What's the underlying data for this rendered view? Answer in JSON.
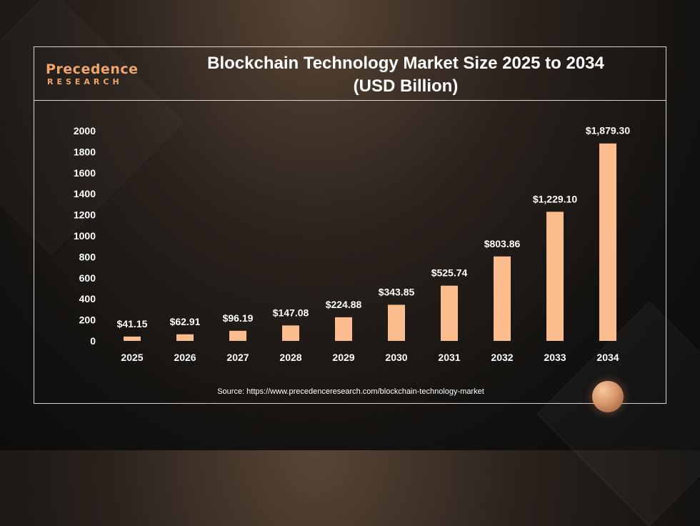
{
  "logo": {
    "main": "Precedence",
    "sub": "RESEARCH"
  },
  "title": {
    "line1": "Blockchain Technology Market Size 2025 to 2034",
    "line2": "(USD Billion)"
  },
  "source": "Source: https://www.precedenceresearch.com/blockchain-technology-market",
  "colors": {
    "bar": "#fbbd8d",
    "text": "#ffffff",
    "accent": "#f0a56c"
  },
  "chart_data": {
    "type": "bar",
    "title": "Blockchain Technology Market Size 2025 to 2034 (USD Billion)",
    "xlabel": "",
    "ylabel": "",
    "ylim": [
      0,
      2000
    ],
    "yticks": [
      0,
      200,
      400,
      600,
      800,
      1000,
      1200,
      1400,
      1600,
      1800,
      2000
    ],
    "grid": false,
    "categories": [
      "2025",
      "2026",
      "2027",
      "2028",
      "2029",
      "2030",
      "2031",
      "2032",
      "2033",
      "2034"
    ],
    "values": [
      41.15,
      62.91,
      96.19,
      147.08,
      224.88,
      343.85,
      525.74,
      803.86,
      1229.1,
      1879.3
    ],
    "data_labels": [
      "$41.15",
      "$62.91",
      "$96.19",
      "$147.08",
      "$224.88",
      "$343.85",
      "$525.74",
      "$803.86",
      "$1,229.10",
      "$1,879.30"
    ]
  }
}
